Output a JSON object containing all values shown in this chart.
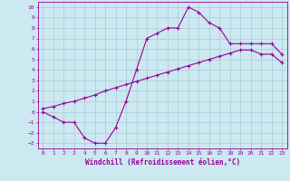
{
  "xlabel": "Windchill (Refroidissement éolien,°C)",
  "background_color": "#cce8f0",
  "line_color": "#990099",
  "grid_color": "#a8ccd4",
  "xlim": [
    -0.5,
    23.5
  ],
  "ylim": [
    -3.5,
    10.5
  ],
  "xticks": [
    0,
    1,
    2,
    3,
    4,
    5,
    6,
    7,
    8,
    9,
    10,
    11,
    12,
    13,
    14,
    15,
    16,
    17,
    18,
    19,
    20,
    21,
    22,
    23
  ],
  "yticks": [
    -3,
    -2,
    -1,
    0,
    1,
    2,
    3,
    4,
    5,
    6,
    7,
    8,
    9,
    10
  ],
  "curve1_x": [
    0,
    1,
    2,
    3,
    4,
    5,
    6,
    7,
    8,
    9,
    10,
    11,
    12,
    13,
    14,
    15,
    16,
    17,
    18,
    19,
    20,
    21,
    22,
    23
  ],
  "curve1_y": [
    0,
    -0.5,
    -1,
    -1,
    -2.5,
    -3,
    -3,
    -1.5,
    1.0,
    4.0,
    7.0,
    7.5,
    8.0,
    8.0,
    10.0,
    9.5,
    8.5,
    8.0,
    6.5,
    6.5,
    6.5,
    6.5,
    6.5,
    5.5
  ],
  "curve2_x": [
    0,
    1,
    2,
    3,
    4,
    5,
    6,
    7,
    8,
    9,
    10,
    11,
    12,
    13,
    14,
    15,
    16,
    17,
    18,
    19,
    20,
    21,
    22,
    23
  ],
  "curve2_y": [
    0.3,
    0.5,
    0.8,
    1.0,
    1.3,
    1.6,
    2.0,
    2.3,
    2.6,
    2.9,
    3.2,
    3.5,
    3.8,
    4.1,
    4.4,
    4.7,
    5.0,
    5.3,
    5.6,
    5.9,
    5.9,
    5.5,
    5.5,
    4.7
  ],
  "marker": "+",
  "markersize": 3,
  "linewidth": 0.8,
  "tick_fontsize": 4.5,
  "label_fontsize": 5.5
}
